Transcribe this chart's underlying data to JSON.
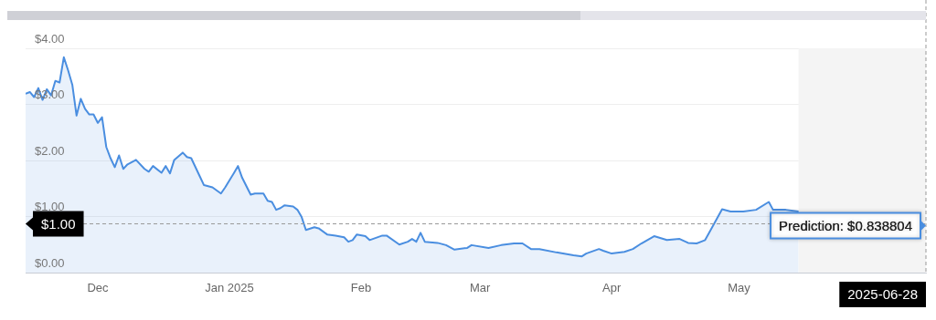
{
  "chart_data": {
    "type": "area",
    "x": [
      "2024-11-28",
      "2024-11-29",
      "2024-11-30",
      "2024-12-01",
      "2024-12-02",
      "2024-12-03",
      "2024-12-04",
      "2024-12-05",
      "2024-12-06",
      "2024-12-07",
      "2024-12-08",
      "2024-12-09",
      "2024-12-10",
      "2024-12-11",
      "2024-12-12",
      "2024-12-13",
      "2024-12-14",
      "2024-12-15",
      "2024-12-16",
      "2024-12-17",
      "2024-12-18",
      "2024-12-19",
      "2024-12-20",
      "2024-12-21",
      "2024-12-22",
      "2024-12-24",
      "2024-12-26",
      "2024-12-27",
      "2024-12-28",
      "2024-12-30",
      "2024-12-31",
      "2025-01-01",
      "2025-01-02",
      "2025-01-04",
      "2025-01-05",
      "2025-01-06",
      "2025-01-08",
      "2025-01-09",
      "2025-01-11",
      "2025-01-13",
      "2025-01-14",
      "2025-01-16",
      "2025-01-17",
      "2025-01-18",
      "2025-01-20",
      "2025-01-21",
      "2025-01-23",
      "2025-01-24",
      "2025-01-25",
      "2025-01-26",
      "2025-01-27",
      "2025-01-28",
      "2025-01-30",
      "2025-01-31",
      "2025-02-01",
      "2025-02-02",
      "2025-02-04",
      "2025-02-05",
      "2025-02-07",
      "2025-02-09",
      "2025-02-11",
      "2025-02-12",
      "2025-02-13",
      "2025-02-14",
      "2025-02-16",
      "2025-02-17",
      "2025-02-20",
      "2025-02-21",
      "2025-02-24",
      "2025-02-26",
      "2025-02-27",
      "2025-02-28",
      "2025-03-01",
      "2025-03-02",
      "2025-03-05",
      "2025-03-07",
      "2025-03-09",
      "2025-03-12",
      "2025-03-13",
      "2025-03-17",
      "2025-03-20",
      "2025-03-23",
      "2025-03-25",
      "2025-03-27",
      "2025-03-29",
      "2025-04-02",
      "2025-04-06",
      "2025-04-08",
      "2025-04-09",
      "2025-04-12",
      "2025-04-13",
      "2025-04-15",
      "2025-04-18",
      "2025-04-20",
      "2025-04-22",
      "2025-04-25",
      "2025-04-28",
      "2025-05-01",
      "2025-05-03",
      "2025-05-05",
      "2025-05-07",
      "2025-05-11",
      "2025-05-13",
      "2025-05-16",
      "2025-05-19",
      "2025-05-22",
      "2025-05-23",
      "2025-05-26",
      "2025-05-29"
    ],
    "series": [
      {
        "color": "#4a8ee0",
        "values": [
          3.19,
          3.22,
          3.13,
          3.29,
          3.08,
          3.27,
          3.16,
          3.42,
          3.39,
          3.84,
          3.61,
          3.35,
          2.8,
          3.1,
          2.92,
          2.82,
          2.82,
          2.67,
          2.77,
          2.24,
          2.04,
          1.88,
          2.09,
          1.85,
          1.93,
          2.01,
          1.85,
          1.8,
          1.9,
          1.78,
          1.9,
          1.77,
          2.01,
          2.14,
          2.06,
          2.04,
          1.72,
          1.56,
          1.52,
          1.41,
          1.52,
          1.77,
          1.9,
          1.69,
          1.39,
          1.41,
          1.41,
          1.28,
          1.26,
          1.12,
          1.15,
          1.2,
          1.18,
          1.12,
          0.99,
          0.76,
          0.81,
          0.79,
          0.68,
          0.66,
          0.63,
          0.55,
          0.58,
          0.68,
          0.65,
          0.58,
          0.66,
          0.66,
          0.5,
          0.55,
          0.6,
          0.55,
          0.71,
          0.55,
          0.53,
          0.49,
          0.41,
          0.44,
          0.49,
          0.44,
          0.49,
          0.52,
          0.52,
          0.42,
          0.42,
          0.36,
          0.31,
          0.29,
          0.34,
          0.42,
          0.39,
          0.34,
          0.37,
          0.42,
          0.52,
          0.65,
          0.58,
          0.6,
          0.53,
          0.52,
          0.58,
          1.13,
          1.09,
          1.09,
          1.12,
          1.26,
          1.12,
          1.12,
          1.09
        ]
      }
    ],
    "xlim": [
      "2024-11-28",
      "2025-06-28"
    ],
    "xticks": [
      {
        "value": "2024-12-15",
        "label": "Dec"
      },
      {
        "value": "2025-01-15",
        "label": "Jan 2025"
      },
      {
        "value": "2025-02-15",
        "label": "Feb"
      },
      {
        "value": "2025-03-15",
        "label": "Mar"
      },
      {
        "value": "2025-04-15",
        "label": "Apr"
      },
      {
        "value": "2025-05-15",
        "label": "May"
      }
    ],
    "ylim": [
      0,
      4
    ],
    "yticks": [
      {
        "value": 0,
        "label": "$0.00"
      },
      {
        "value": 1,
        "label": "$1.00"
      },
      {
        "value": 2,
        "label": "$2.00"
      },
      {
        "value": 3,
        "label": "$3.00"
      },
      {
        "value": 4,
        "label": "$4.00"
      }
    ],
    "grid": "y",
    "legend": false,
    "marker": "none",
    "line_style": "solid",
    "ref_lines": [
      {
        "axis": "y",
        "value": 0.87,
        "line_style": "dashed",
        "color": "#999999"
      },
      {
        "axis": "x",
        "value": "2025-06-28",
        "label": "2025-06-28",
        "line_style": "dashed",
        "color": "#999999"
      }
    ],
    "bands": [
      {
        "axis": "x",
        "from": "2025-05-29",
        "to": "2025-06-28",
        "color": "#f4f4f4"
      }
    ],
    "annotations": [
      "$1.00",
      {
        "text": "Prediction: $0.838804",
        "x": "2025-06-28",
        "y": 0.838804
      }
    ]
  }
}
